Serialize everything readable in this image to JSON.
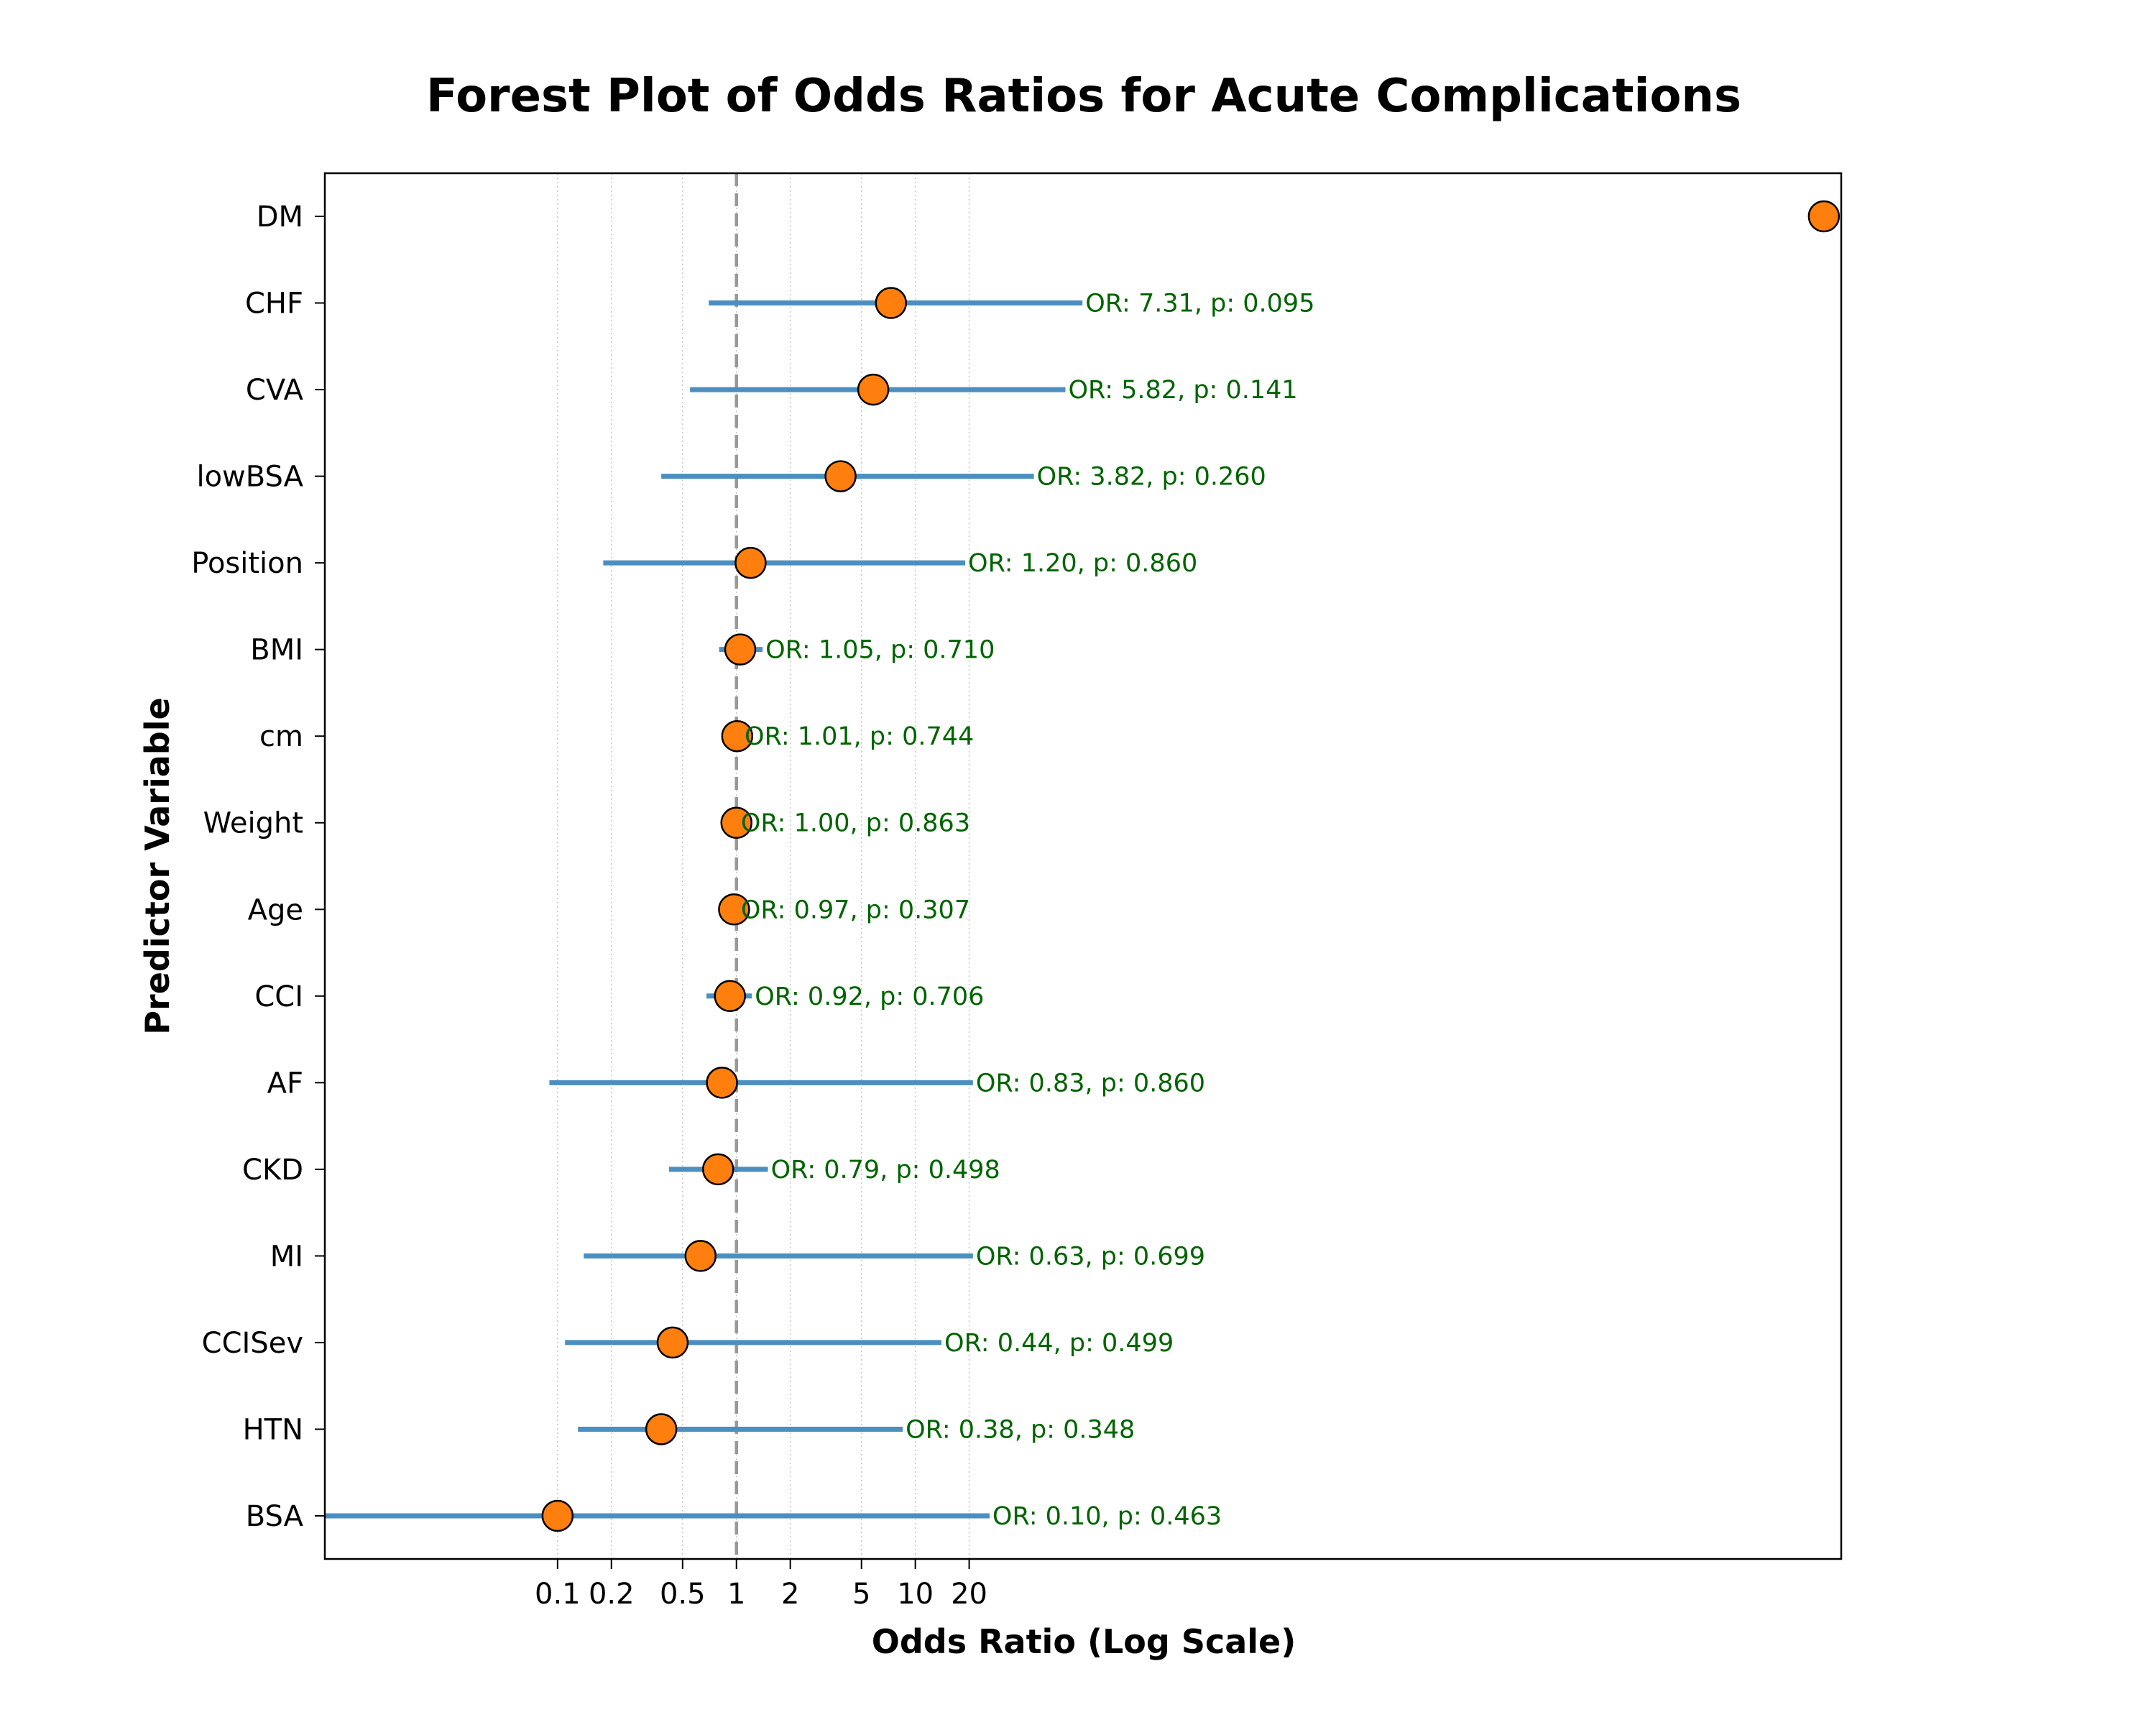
{
  "chart_data": {
    "type": "forest",
    "title": "Forest Plot of Odds Ratios for Acute Complications",
    "xlabel": "Odds Ratio (Log Scale)",
    "ylabel": "Predictor Variable",
    "x_scale": "log",
    "xlim": [
      0.005,
      1500000
    ],
    "x_ticks": [
      0.1,
      0.2,
      0.5,
      1,
      2,
      5,
      10,
      20
    ],
    "x_tick_labels": [
      "0.1",
      "0.2",
      "0.5",
      "1",
      "2",
      "5",
      "10",
      "20"
    ],
    "reference_line": 1,
    "grid": "vertical dotted at x ticks",
    "colors": {
      "ci_line": "#4a8fc0",
      "marker_fill": "#ff7f0e",
      "marker_edge": "#000000",
      "annotation": "#006400",
      "reference": "#999999"
    },
    "rows": [
      {
        "label": "BSA",
        "or": 0.1,
        "ci": [
          0.005,
          26
        ],
        "annotation": "OR: 0.10, p: 0.463"
      },
      {
        "label": "HTN",
        "or": 0.38,
        "ci": [
          0.13,
          8.5
        ],
        "annotation": "OR: 0.38, p: 0.348"
      },
      {
        "label": "CCISev",
        "or": 0.44,
        "ci": [
          0.11,
          14
        ],
        "annotation": "OR: 0.44, p: 0.499"
      },
      {
        "label": "MI",
        "or": 0.63,
        "ci": [
          0.14,
          21
        ],
        "annotation": "OR: 0.63, p: 0.699"
      },
      {
        "label": "CKD",
        "or": 0.79,
        "ci": [
          0.42,
          1.5
        ],
        "annotation": "OR: 0.79, p: 0.498"
      },
      {
        "label": "AF",
        "or": 0.83,
        "ci": [
          0.09,
          21
        ],
        "annotation": "OR: 0.83, p: 0.860"
      },
      {
        "label": "CCI",
        "or": 0.92,
        "ci": [
          0.68,
          1.22
        ],
        "annotation": "OR: 0.92, p: 0.706"
      },
      {
        "label": "Age",
        "or": 0.97,
        "ci": [
          0.92,
          1.02
        ],
        "annotation": "OR: 0.97, p: 0.307"
      },
      {
        "label": "Weight",
        "or": 1.0,
        "ci": [
          0.98,
          1.02
        ],
        "annotation": "OR: 1.00, p: 0.863"
      },
      {
        "label": "cm",
        "or": 1.01,
        "ci": [
          0.95,
          1.07
        ],
        "annotation": "OR: 1.01, p: 0.744"
      },
      {
        "label": "BMI",
        "or": 1.05,
        "ci": [
          0.8,
          1.4
        ],
        "annotation": "OR: 1.05, p: 0.710"
      },
      {
        "label": "Position",
        "or": 1.2,
        "ci": [
          0.18,
          19
        ],
        "annotation": "OR: 1.20, p: 0.860"
      },
      {
        "label": "lowBSA",
        "or": 3.82,
        "ci": [
          0.38,
          46
        ],
        "annotation": "OR: 3.82, p: 0.260"
      },
      {
        "label": "CVA",
        "or": 5.82,
        "ci": [
          0.55,
          69
        ],
        "annotation": "OR: 5.82, p: 0.141"
      },
      {
        "label": "CHF",
        "or": 7.31,
        "ci": [
          0.7,
          86
        ],
        "annotation": "OR: 7.31, p: 0.095"
      },
      {
        "label": "DM",
        "or": 1200000,
        "ci": null,
        "annotation": ""
      }
    ]
  }
}
